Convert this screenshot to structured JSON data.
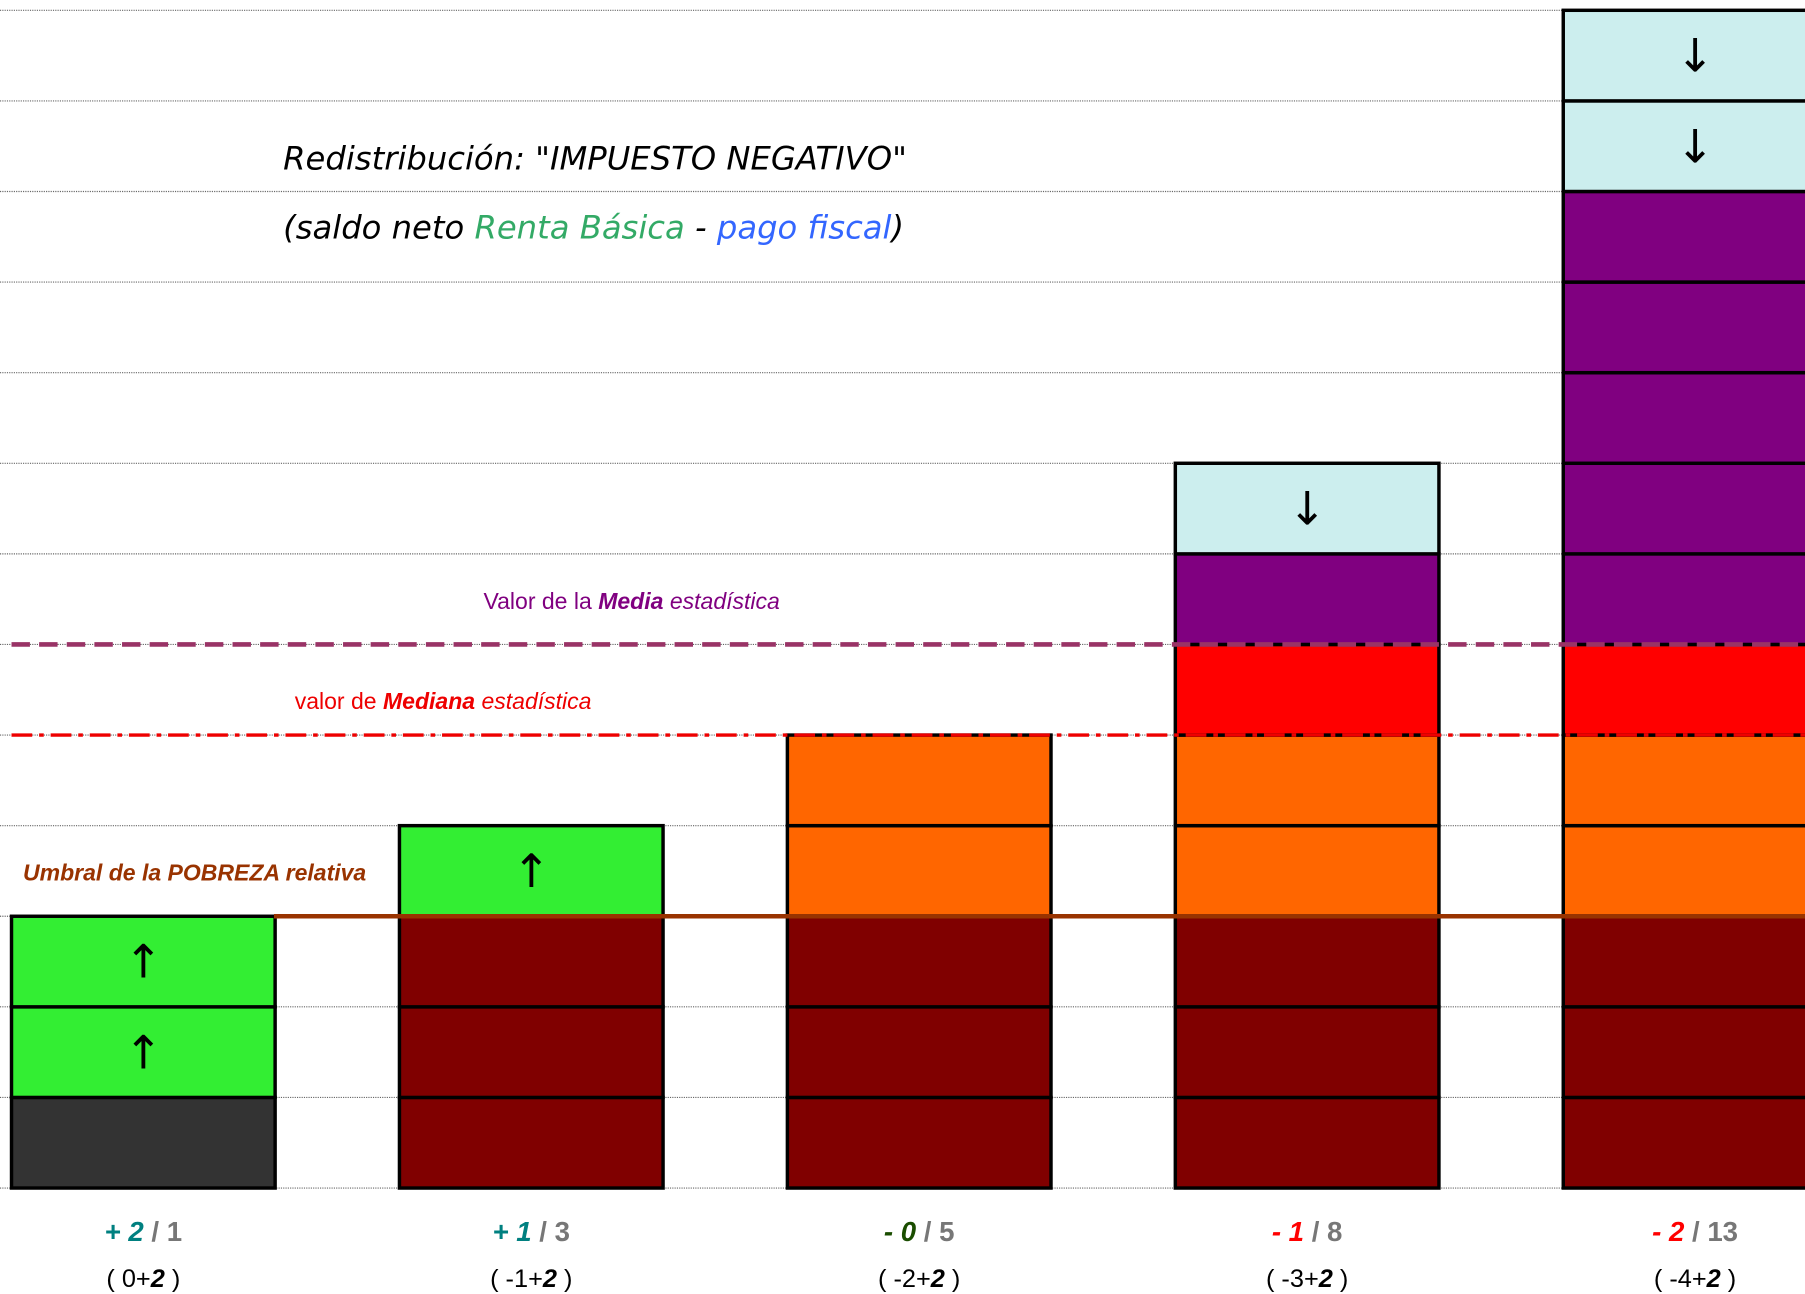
{
  "title": "Redistribución: \"IMPUESTO NEGATIVO\"",
  "subtitle": {
    "open": "(saldo neto ",
    "income": "Renta Básica",
    "minus": " - ",
    "tax": "pago fiscal",
    "close": ")"
  },
  "mean_label": {
    "pre": "Valor de la ",
    "bold": "Media",
    "post": " estadística"
  },
  "median_label": {
    "pre": "valor de ",
    "bold": "Mediana",
    "post": " estadística"
  },
  "poverty_label": "Umbral de la POBREZA relativa",
  "columns": [
    {
      "net": "+ 2",
      "net_color": "#008080",
      "total": " / 1",
      "formula_pre": "( 0+",
      "formula_bold": "2",
      "formula_post": " )",
      "blocks": [
        {
          "color": "#333333"
        },
        {
          "color": "#33ee33",
          "arrow": "↑"
        },
        {
          "color": "#33ee33",
          "arrow": "↑"
        }
      ]
    },
    {
      "net": "+ 1",
      "net_color": "#008080",
      "total": " / 3",
      "formula_pre": "( -1+",
      "formula_bold": "2",
      "formula_post": " )",
      "blocks": [
        {
          "color": "#800000"
        },
        {
          "color": "#800000"
        },
        {
          "color": "#800000"
        },
        {
          "color": "#33ee33",
          "arrow": "↑"
        }
      ]
    },
    {
      "net": "- 0",
      "net_color": "#1a4d00",
      "total": " / 5",
      "formula_pre": "( -2+",
      "formula_bold": "2",
      "formula_post": " )",
      "blocks": [
        {
          "color": "#800000"
        },
        {
          "color": "#800000"
        },
        {
          "color": "#800000"
        },
        {
          "color": "#ff6600"
        },
        {
          "color": "#ff6600"
        }
      ]
    },
    {
      "net": "- 1",
      "net_color": "#ff0000",
      "total": " / 8",
      "formula_pre": "( -3+",
      "formula_bold": "2",
      "formula_post": " )",
      "blocks": [
        {
          "color": "#800000"
        },
        {
          "color": "#800000"
        },
        {
          "color": "#800000"
        },
        {
          "color": "#ff6600"
        },
        {
          "color": "#ff6600"
        },
        {
          "color": "#ff0000"
        },
        {
          "color": "#800080"
        },
        {
          "color": "#cceeee",
          "arrow": "↓"
        }
      ]
    },
    {
      "net": "- 2",
      "net_color": "#ff0000",
      "total": " / 13",
      "formula_pre": "( -4+",
      "formula_bold": "2",
      "formula_post": " )",
      "blocks": [
        {
          "color": "#800000"
        },
        {
          "color": "#800000"
        },
        {
          "color": "#800000"
        },
        {
          "color": "#ff6600"
        },
        {
          "color": "#ff6600"
        },
        {
          "color": "#ff0000"
        },
        {
          "color": "#800080"
        },
        {
          "color": "#800080"
        },
        {
          "color": "#800080"
        },
        {
          "color": "#800080"
        },
        {
          "color": "#800080"
        },
        {
          "color": "#cceeee",
          "arrow": "↓"
        },
        {
          "color": "#cceeee",
          "arrow": "↓"
        }
      ]
    }
  ]
}
